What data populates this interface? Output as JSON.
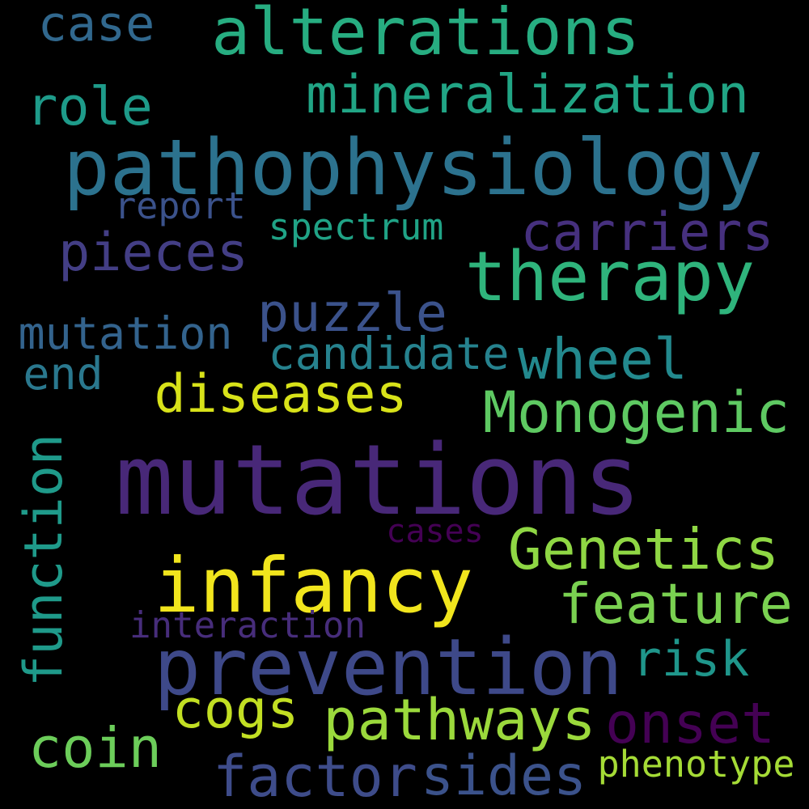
{
  "words": [
    {
      "text": "mutations",
      "color": "#482878"
    },
    {
      "text": "pathophysiology",
      "color": "#2c728e"
    },
    {
      "text": "alterations",
      "color": "#27ad81"
    },
    {
      "text": "infancy",
      "color": "#f1e51d"
    },
    {
      "text": "prevention",
      "color": "#3e4989"
    },
    {
      "text": "therapy",
      "color": "#2fb47c"
    },
    {
      "text": "mineralization",
      "color": "#21a585"
    },
    {
      "text": "Genetics",
      "color": "#8fd744"
    },
    {
      "text": "Monogenic",
      "color": "#5ec962"
    },
    {
      "text": "feature",
      "color": "#7ad151"
    },
    {
      "text": "diseases",
      "color": "#d8e219"
    },
    {
      "text": "pathways",
      "color": "#9bd93c"
    },
    {
      "text": "carriers",
      "color": "#46307e"
    },
    {
      "text": "pieces",
      "color": "#433e85"
    },
    {
      "text": "puzzle",
      "color": "#3b528b"
    },
    {
      "text": "wheel",
      "color": "#23898e"
    },
    {
      "text": "function",
      "color": "#1f9a8a"
    },
    {
      "text": "factor",
      "color": "#3e4c8a"
    },
    {
      "text": "sides",
      "color": "#3b528b"
    },
    {
      "text": "onset",
      "color": "#440154"
    },
    {
      "text": "cogs",
      "color": "#c2df23"
    },
    {
      "text": "coin",
      "color": "#6ccd5a"
    },
    {
      "text": "risk",
      "color": "#1f968b"
    },
    {
      "text": "mutation",
      "color": "#33638d"
    },
    {
      "text": "candidate",
      "color": "#26828e"
    },
    {
      "text": "role",
      "color": "#1e9b8a"
    },
    {
      "text": "case",
      "color": "#31688e"
    },
    {
      "text": "end",
      "color": "#2a788e"
    },
    {
      "text": "phenotype",
      "color": "#a5db36"
    },
    {
      "text": "spectrum",
      "color": "#20a386"
    },
    {
      "text": "report",
      "color": "#3b528b"
    },
    {
      "text": "interaction",
      "color": "#472d7b"
    },
    {
      "text": "cases",
      "color": "#440154"
    }
  ]
}
